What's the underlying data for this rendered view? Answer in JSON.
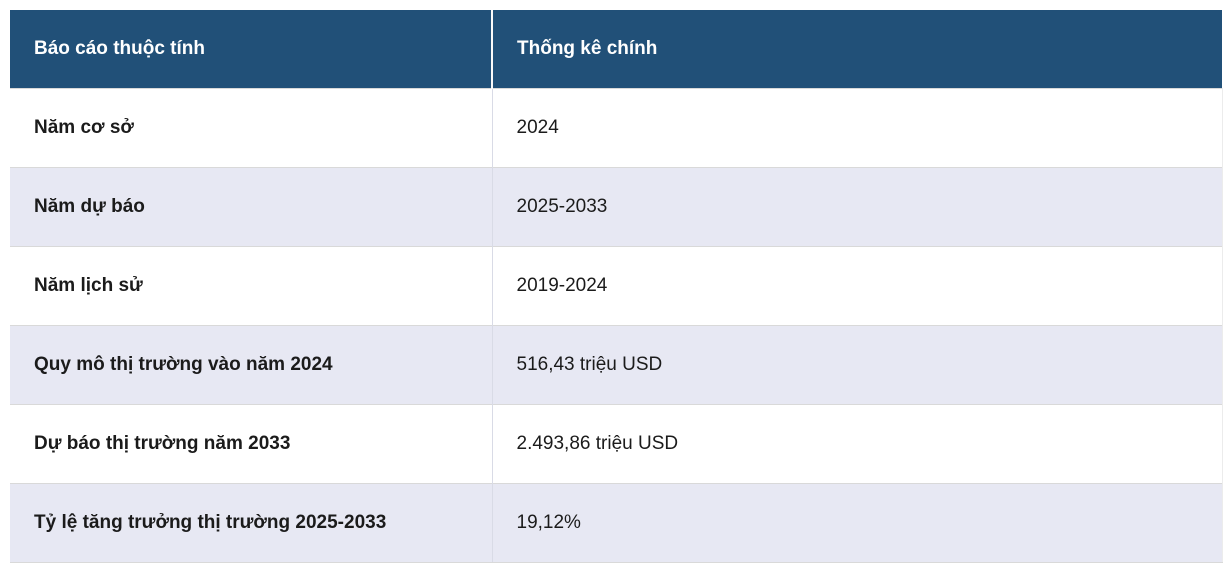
{
  "colors": {
    "header_background": "#215078",
    "header_text": "#ffffff",
    "row_background": "#ffffff",
    "row_alt_background": "#e7e8f3",
    "body_text": "#1b1b1b",
    "row_border": "#d9d9d9"
  },
  "table": {
    "columns": [
      {
        "label": "Báo cáo thuộc tính"
      },
      {
        "label": "Thống kê chính"
      }
    ],
    "rows": [
      {
        "attribute": "Năm cơ sở",
        "value": "2024"
      },
      {
        "attribute": "Năm dự báo",
        "value": "2025-2033"
      },
      {
        "attribute": "Năm lịch sử",
        "value": "2019-2024"
      },
      {
        "attribute": "Quy mô thị trường vào năm 2024",
        "value": "516,43 triệu USD"
      },
      {
        "attribute": "Dự báo thị trường năm 2033",
        "value": "2.493,86 triệu USD"
      },
      {
        "attribute": "Tỷ lệ tăng trưởng thị trường 2025-2033",
        "value": "19,12%"
      }
    ]
  }
}
